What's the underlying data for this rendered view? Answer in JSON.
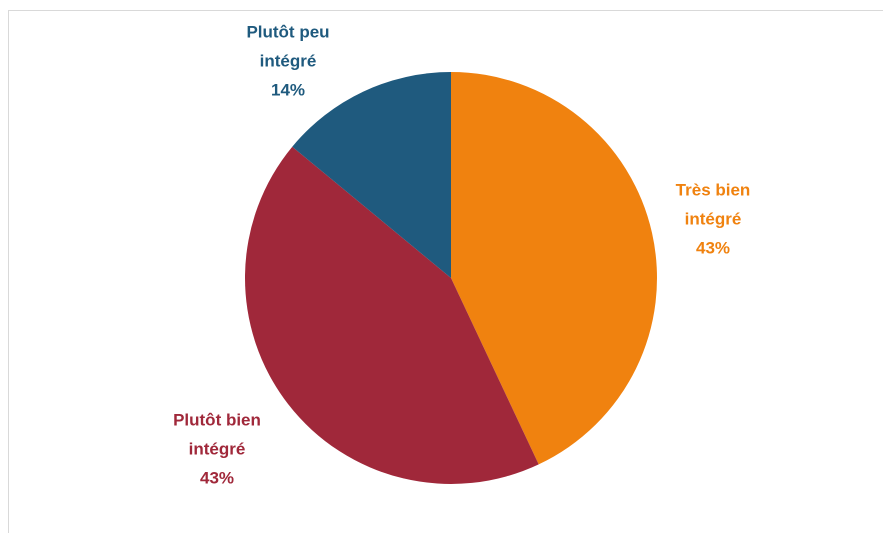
{
  "chart_data": {
    "type": "pie",
    "categories": [
      "Très bien intégré",
      "Plutôt bien intégré",
      "Plutôt peu intégré"
    ],
    "values": [
      43,
      43,
      14
    ],
    "value_labels": [
      "43%",
      "43%",
      "14%"
    ],
    "colors": [
      "#f0820f",
      "#a0283a",
      "#1f5a7e"
    ]
  }
}
